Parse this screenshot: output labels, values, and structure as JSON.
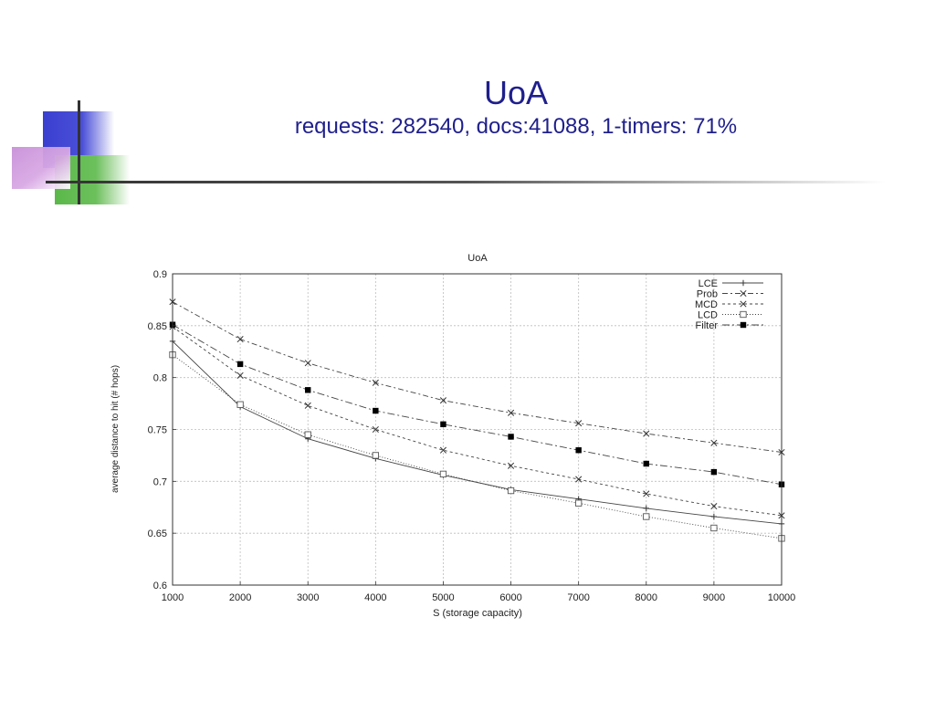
{
  "slide": {
    "title": "UoA",
    "subtitle": "requests: 282540, docs:41088, 1-timers: 71%"
  },
  "chart_data": {
    "type": "line",
    "title": "UoA",
    "xlabel": "S (storage capacity)",
    "ylabel": "average distance to hit (# hops)",
    "x": [
      1000,
      2000,
      3000,
      4000,
      5000,
      6000,
      7000,
      8000,
      9000,
      10000
    ],
    "xlim": [
      1000,
      10000
    ],
    "ylim": [
      0.6,
      0.9
    ],
    "xticks": [
      "1000",
      "2000",
      "3000",
      "4000",
      "5000",
      "6000",
      "7000",
      "8000",
      "9000",
      "10000"
    ],
    "yticks": [
      "0.6",
      "0.65",
      "0.7",
      "0.75",
      "0.8",
      "0.85",
      "0.9"
    ],
    "grid": true,
    "legend_position": "top-right",
    "series": [
      {
        "name": "LCE",
        "marker": "plus",
        "dash": "none",
        "values": [
          0.835,
          0.772,
          0.741,
          0.722,
          0.706,
          0.692,
          0.683,
          0.674,
          0.666,
          0.659
        ]
      },
      {
        "name": "Prob",
        "marker": "x",
        "dash": "6,3,2,3",
        "values": [
          0.873,
          0.837,
          0.814,
          0.795,
          0.778,
          0.766,
          0.756,
          0.746,
          0.737,
          0.728
        ]
      },
      {
        "name": "MCD",
        "marker": "x",
        "dash": "3,3",
        "values": [
          0.849,
          0.802,
          0.773,
          0.75,
          0.73,
          0.715,
          0.702,
          0.688,
          0.676,
          0.667
        ]
      },
      {
        "name": "LCD",
        "marker": "square-open",
        "dash": "1,2",
        "values": [
          0.822,
          0.774,
          0.745,
          0.725,
          0.707,
          0.691,
          0.679,
          0.666,
          0.655,
          0.645
        ]
      },
      {
        "name": "Filter",
        "marker": "square-filled",
        "dash": "8,3,2,3",
        "values": [
          0.851,
          0.813,
          0.788,
          0.768,
          0.755,
          0.743,
          0.73,
          0.717,
          0.709,
          0.697
        ]
      }
    ]
  }
}
